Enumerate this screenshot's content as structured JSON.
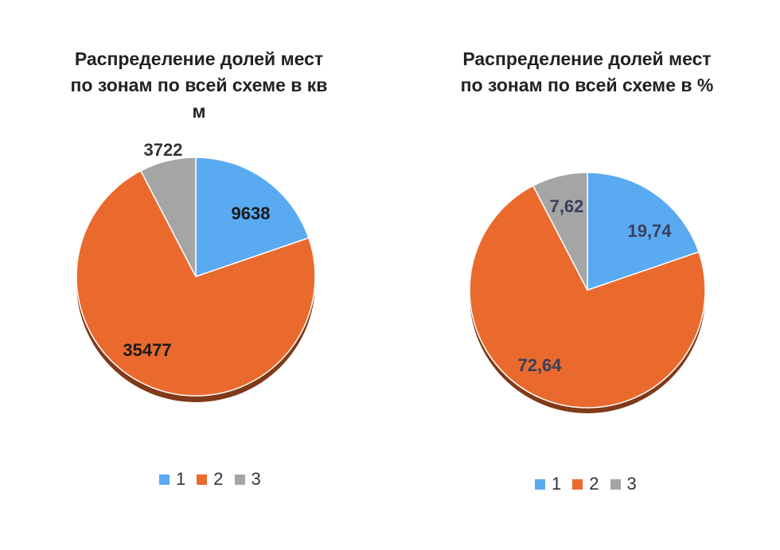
{
  "chart_data": [
    {
      "type": "pie",
      "title": "Распределение долей мест по зонам по всей схеме в кв м",
      "title_lines": [
        "Распределение долей мест",
        "по зонам по всей схеме в кв",
        "м"
      ],
      "categories": [
        "1",
        "2",
        "3"
      ],
      "values": [
        9638,
        35477,
        3722
      ],
      "data_labels": [
        "9638",
        "35477",
        "3722"
      ],
      "colors": [
        "#5aaaf2",
        "#ea6a2e",
        "#a5a5a5"
      ],
      "legend_position": "bottom"
    },
    {
      "type": "pie",
      "title": "Распределение долей мест по зонам по всей схеме в %",
      "title_lines": [
        "Распределение долей мест",
        "по зонам по всей схеме в %"
      ],
      "categories": [
        "1",
        "2",
        "3"
      ],
      "values": [
        19.74,
        72.64,
        7.62
      ],
      "data_labels": [
        "19,74",
        "72,64",
        "7,62"
      ],
      "colors": [
        "#5aaaf2",
        "#ea6a2e",
        "#a5a5a5"
      ],
      "legend_position": "bottom"
    }
  ]
}
